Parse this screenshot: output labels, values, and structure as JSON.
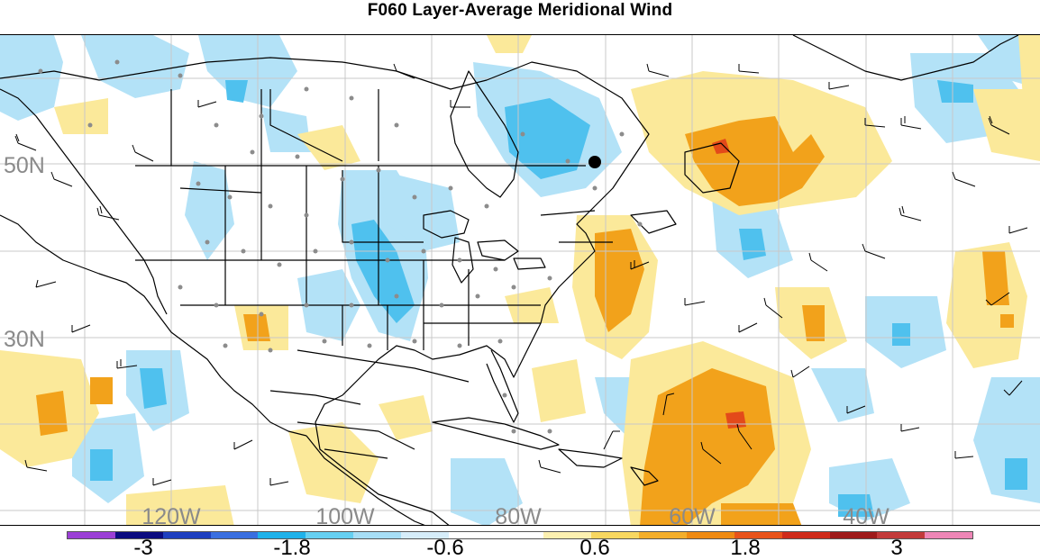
{
  "title": "F060 Layer-Average Meridional Wind",
  "map": {
    "projection": "cylindrical equidistant",
    "region": "North America / North Atlantic",
    "field": "Layer-Average Meridional Wind (shaded anomalies) with wind barbs",
    "lat_labels": [
      "50N",
      "30N"
    ],
    "lon_labels": [
      "120W",
      "100W",
      "80W",
      "60W",
      "40W"
    ],
    "grid": true,
    "features": [
      "coastlines",
      "country borders",
      "state/province borders",
      "observation station dots",
      "wind barbs",
      "highlighted point"
    ],
    "colors": {
      "land_border": "#000000",
      "grid": "#c8c8c8",
      "station_dot": "#8c8c8c",
      "highlight_point": "#000000"
    }
  },
  "colorbar": {
    "labels": [
      "-3",
      "-1.8",
      "-0.6",
      "0.6",
      "1.8",
      "3"
    ],
    "colors": [
      "#9b3fd6",
      "#0b0b80",
      "#1e3fbf",
      "#3a6fe0",
      "#1fb2ea",
      "#66d0f2",
      "#a7def6",
      "#d6edfa",
      "#ffffff",
      "#ffffff",
      "#fcf0b0",
      "#f8d760",
      "#f3ae2b",
      "#ef8a12",
      "#e8531a",
      "#cf2b1a",
      "#9e1a1a",
      "#c23a3a",
      "#ee86b6"
    ]
  }
}
